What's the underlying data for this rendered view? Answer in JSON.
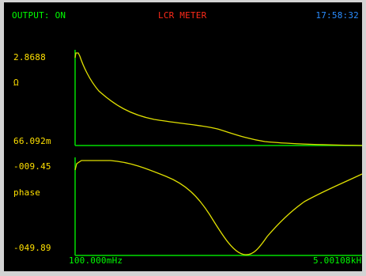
{
  "header": {
    "output_status": "OUTPUT: ON",
    "title": "LCR METER",
    "time": "17:58:32"
  },
  "plot_impedance": {
    "y_max": "2.8688",
    "unit": "Ω",
    "y_min": "66.092m"
  },
  "plot_phase": {
    "y_max": "-009.45",
    "unit": "phase",
    "y_min": "-049.89"
  },
  "x_axis": {
    "start": "100.000mHz",
    "end": "5.00108kHz"
  },
  "colors": {
    "status": "#00ff00",
    "title": "#ff2a1a",
    "time": "#2a8cff",
    "labels": "#ffe000",
    "axis": "#00dd00",
    "trace": "#e0e000",
    "background": "#000000"
  }
}
